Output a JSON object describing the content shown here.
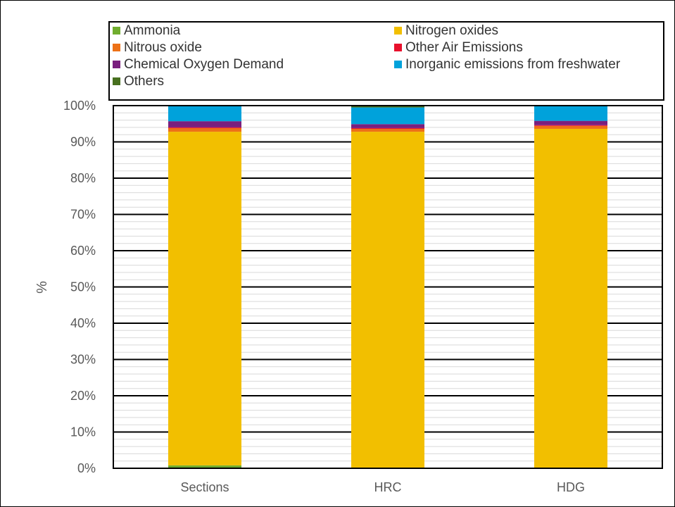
{
  "chart_data": {
    "type": "bar",
    "stacked": true,
    "categories": [
      "Sections",
      "HRC",
      "HDG"
    ],
    "ylabel": "%",
    "ylim": [
      0,
      100
    ],
    "y_ticks": [
      "0%",
      "10%",
      "20%",
      "30%",
      "40%",
      "50%",
      "60%",
      "70%",
      "80%",
      "90%",
      "100%"
    ],
    "grid": true,
    "legend_position": "top",
    "series": [
      {
        "name": "Ammonia",
        "color": "#70AD2E",
        "values": [
          0.8,
          0.2,
          0.2
        ]
      },
      {
        "name": "Nitrogen oxides",
        "color": "#F2BF00",
        "values": [
          92.0,
          92.6,
          93.4
        ]
      },
      {
        "name": "Nitrous oxide",
        "color": "#ED7117",
        "values": [
          1.0,
          0.8,
          0.8
        ]
      },
      {
        "name": "Other Air Emissions",
        "color": "#E8102C",
        "values": [
          0.2,
          0.2,
          0.2
        ]
      },
      {
        "name": "Chemical Oxygen Demand",
        "color": "#7A1F7E",
        "values": [
          1.7,
          1.1,
          1.2
        ]
      },
      {
        "name": "Inorganic emissions from freshwater",
        "color": "#00A2DB",
        "values": [
          4.3,
          4.6,
          4.2
        ]
      },
      {
        "name": "Others",
        "color": "#48701F",
        "values": [
          0.0,
          0.5,
          0.0
        ]
      }
    ]
  }
}
